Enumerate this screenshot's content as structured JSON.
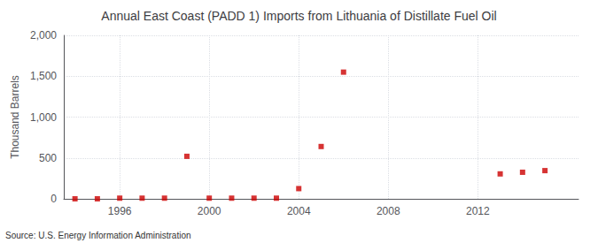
{
  "chart_data": {
    "type": "scatter",
    "title": "Annual East Coast (PADD 1) Imports from Lithuania of Distillate Fuel Oil",
    "ylabel": "Thousand Barrels",
    "annotations": [
      "Source: U.S. Energy Information Administration"
    ],
    "x": [
      1994,
      1995,
      1996,
      1997,
      1998,
      1999,
      2000,
      2001,
      2002,
      2003,
      2004,
      2005,
      2006,
      2013,
      2014,
      2015
    ],
    "values": [
      0,
      0,
      8,
      8,
      8,
      520,
      8,
      8,
      8,
      8,
      125,
      640,
      1550,
      305,
      325,
      345
    ],
    "color": "#cc0000",
    "marker": "square",
    "xlim": [
      1993.5,
      2016.5
    ],
    "xticks": [
      1996,
      2000,
      2004,
      2008,
      2012
    ],
    "ylim": [
      0,
      2000
    ],
    "yticks": [
      0,
      500,
      {
        "value": 1000,
        "label": "1,000"
      },
      {
        "value": 1500,
        "label": "1,500"
      },
      {
        "value": 2000,
        "label": "2,000"
      }
    ],
    "grid": true
  }
}
